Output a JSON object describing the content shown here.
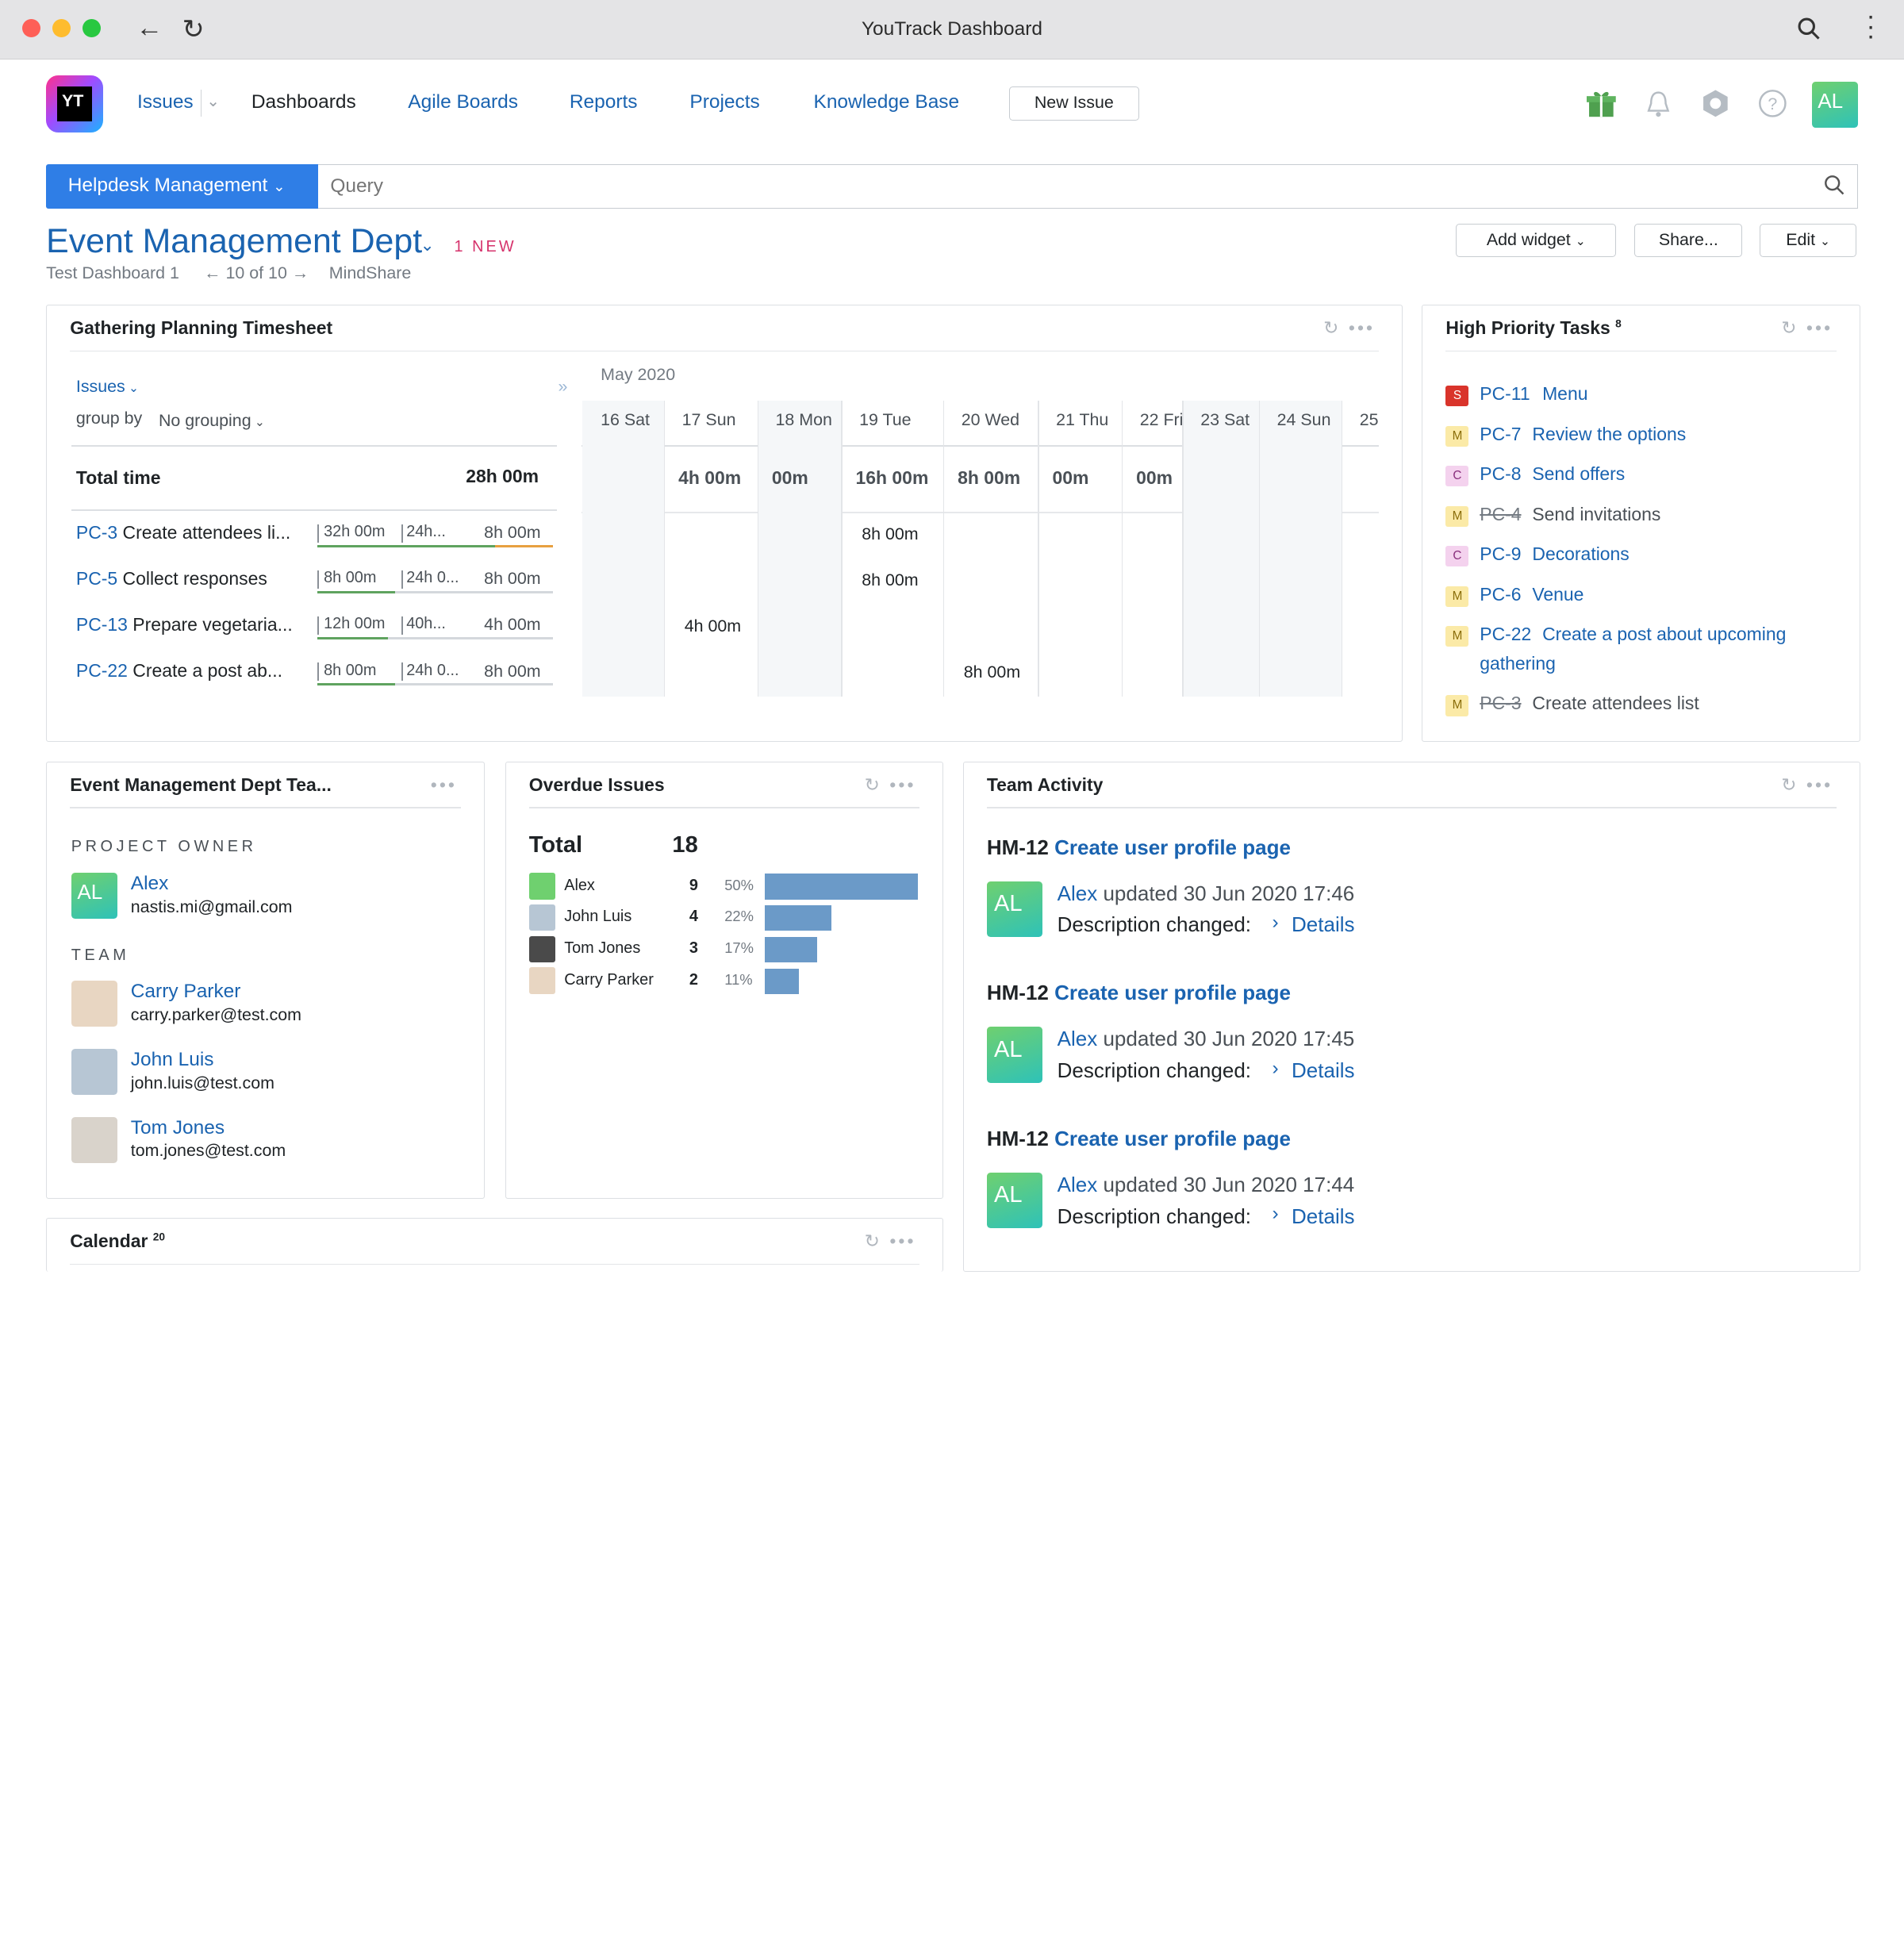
{
  "window": {
    "title": "YouTrack Dashboard"
  },
  "nav": {
    "logo": "YT",
    "issues": "Issues",
    "dashboards": "Dashboards",
    "agile": "Agile Boards",
    "reports": "Reports",
    "projects": "Projects",
    "kb": "Knowledge Base",
    "new_issue": "New Issue",
    "user_initials": "AL"
  },
  "search": {
    "project": "Helpdesk Management",
    "placeholder": "Query"
  },
  "dashboard": {
    "title": "Event Management Dept",
    "new_badge": "1 NEW",
    "sub1": "Test Dashboard 1",
    "pager": "10 of 10",
    "sub2": "MindShare",
    "add_widget": "Add widget",
    "share": "Share...",
    "edit": "Edit"
  },
  "timesheet": {
    "title": "Gathering Planning Timesheet",
    "issues_filter": "Issues",
    "group_by": "group by",
    "grouping": "No grouping",
    "month": "May 2020",
    "days": [
      "16 Sat",
      "17 Sun",
      "18 Mon",
      "19 Tue",
      "20 Wed",
      "21 Thu",
      "22 Fri",
      "23 Sat",
      "24 Sun",
      "25"
    ],
    "total_label": "Total time",
    "total_value": "28h 00m",
    "day_totals": [
      "",
      "4h 00m",
      "00m",
      "16h 00m",
      "8h 00m",
      "00m",
      "00m",
      "",
      "",
      ""
    ],
    "rows": [
      {
        "id": "PC-3",
        "summary": "Create attendees li...",
        "est": "32h 00m",
        "spent": "24h...",
        "time": "8h 00m",
        "progress": 0.75,
        "cells": [
          "",
          "",
          "",
          "8h 00m",
          "",
          "",
          "",
          "",
          "",
          ""
        ]
      },
      {
        "id": "PC-5",
        "summary": "Collect responses",
        "est": "8h 00m",
        "spent": "24h 0...",
        "time": "8h 00m",
        "progress": 0.33,
        "cells": [
          "",
          "",
          "",
          "8h 00m",
          "",
          "",
          "",
          "",
          "",
          ""
        ]
      },
      {
        "id": "PC-13",
        "summary": "Prepare vegetaria...",
        "est": "12h 00m",
        "spent": "40h...",
        "time": "4h 00m",
        "progress": 0.3,
        "cells": [
          "",
          "4h 00m",
          "",
          "",
          "",
          "",
          "",
          "",
          "",
          ""
        ]
      },
      {
        "id": "PC-22",
        "summary": "Create a post ab...",
        "est": "8h 00m",
        "spent": "24h 0...",
        "time": "8h 00m",
        "progress": 0.33,
        "cells": [
          "",
          "",
          "",
          "",
          "8h 00m",
          "",
          "",
          "",
          "",
          ""
        ]
      }
    ]
  },
  "priority": {
    "title": "High Priority Tasks",
    "count": "8",
    "items": [
      {
        "tag": "S",
        "id": "PC-11",
        "summary": "Menu",
        "done": false
      },
      {
        "tag": "M",
        "id": "PC-7",
        "summary": "Review the options",
        "done": false
      },
      {
        "tag": "C",
        "id": "PC-8",
        "summary": "Send offers",
        "done": false
      },
      {
        "tag": "M",
        "id": "PC-4",
        "summary": "Send invitations",
        "done": true
      },
      {
        "tag": "C",
        "id": "PC-9",
        "summary": "Decorations",
        "done": false
      },
      {
        "tag": "M",
        "id": "PC-6",
        "summary": "Venue",
        "done": false
      },
      {
        "tag": "M",
        "id": "PC-22",
        "summary": "Create a post about upcoming",
        "summary2": "gathering",
        "done": false
      },
      {
        "tag": "M",
        "id": "PC-3",
        "summary": "Create attendees list",
        "done": true
      }
    ]
  },
  "team": {
    "title": "Event Management Dept Tea...",
    "owner_label": "PROJECT OWNER",
    "owner": {
      "initials": "AL",
      "name": "Alex",
      "email": "nastis.mi@gmail.com"
    },
    "team_label": "TEAM",
    "members": [
      {
        "name": "Carry Parker",
        "email": "carry.parker@test.com"
      },
      {
        "name": "John Luis",
        "email": "john.luis@test.com"
      },
      {
        "name": "Tom Jones",
        "email": "tom.jones@test.com"
      }
    ]
  },
  "overdue": {
    "title": "Overdue Issues",
    "total_label": "Total",
    "total": "18",
    "rows": [
      {
        "name": "Alex",
        "count": "9",
        "pct": "50%",
        "frac": 0.5
      },
      {
        "name": "John Luis",
        "count": "4",
        "pct": "22%",
        "frac": 0.22
      },
      {
        "name": "Tom Jones",
        "count": "3",
        "pct": "17%",
        "frac": 0.17
      },
      {
        "name": "Carry Parker",
        "count": "2",
        "pct": "11%",
        "frac": 0.11
      }
    ]
  },
  "activity": {
    "title": "Team Activity",
    "items": [
      {
        "id": "HM-12",
        "summary": "Create user profile page",
        "user": "Alex",
        "when": "updated 30 Jun 2020 17:46",
        "change": "Description changed:",
        "details": "Details"
      },
      {
        "id": "HM-12",
        "summary": "Create user profile page",
        "user": "Alex",
        "when": "updated 30 Jun 2020 17:45",
        "change": "Description changed:",
        "details": "Details"
      },
      {
        "id": "HM-12",
        "summary": "Create user profile page",
        "user": "Alex",
        "when": "updated 30 Jun 2020 17:44",
        "change": "Description changed:",
        "details": "Details"
      }
    ]
  },
  "calendar": {
    "title": "Calendar",
    "count": "20"
  },
  "colors": {
    "accent": "#1a63b0",
    "project_btn": "#2f7ee6",
    "new_badge": "#d6336c",
    "bar": "#6b9ac8",
    "progress_green": "#5fa35f",
    "progress_orange": "#e8a040"
  }
}
